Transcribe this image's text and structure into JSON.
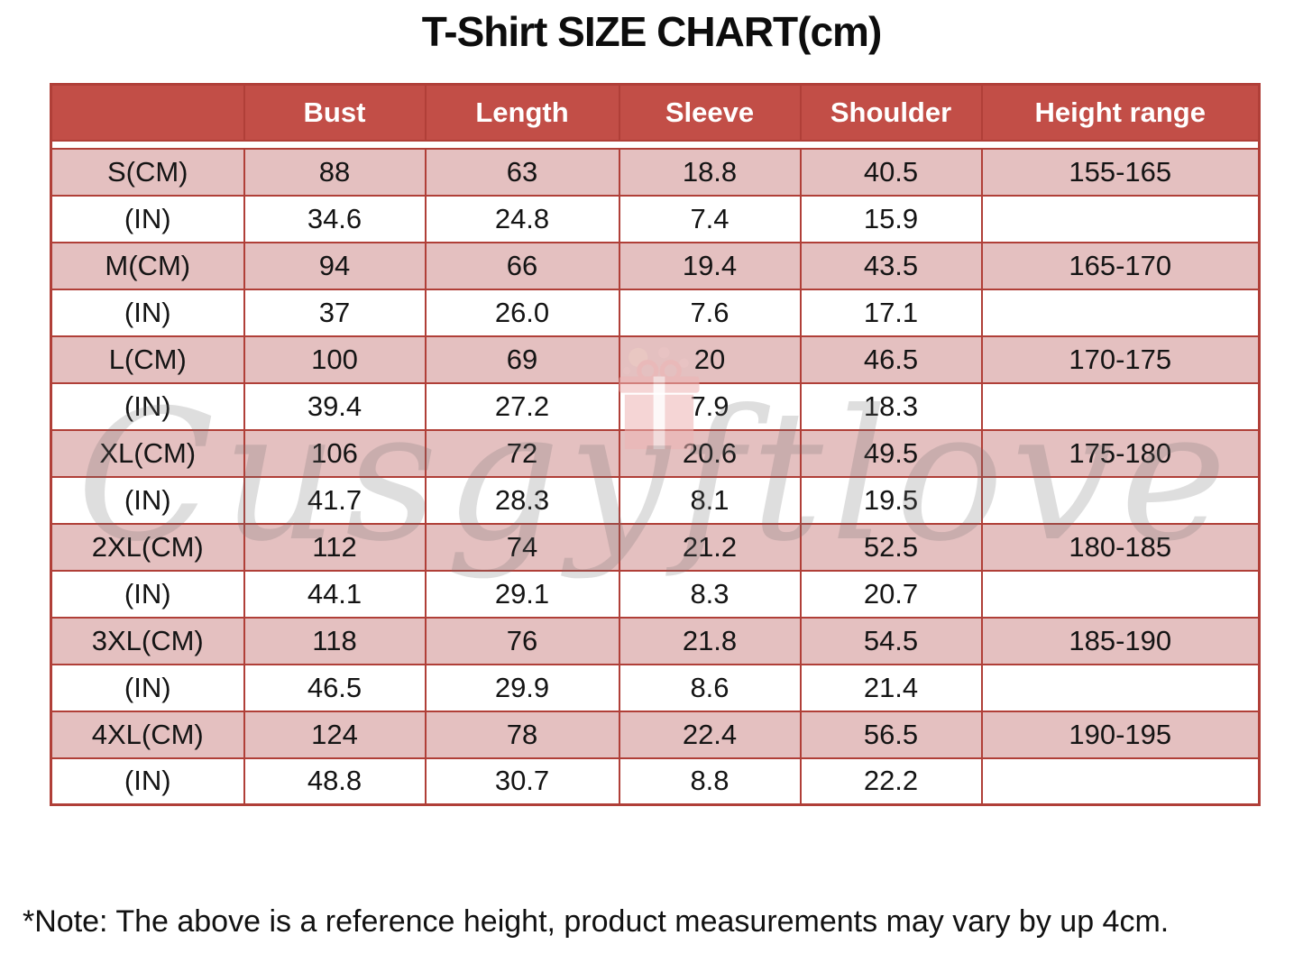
{
  "page": {
    "title": "T-Shirt SIZE CHART(cm)",
    "note": "*Note: The above is a reference height, product measurements may vary by up 4cm.",
    "watermark": "Cusgyftlove"
  },
  "colors": {
    "header_bg": "#c24e47",
    "header_text": "#ffffff",
    "row_shaded_bg": "#e4c0c0",
    "row_plain_bg": "#ffffff",
    "grid_line": "#b03f38",
    "text": "#141414",
    "watermark": "#6f6f6f"
  },
  "chart_data": {
    "type": "table",
    "title": "T-Shirt SIZE CHART(cm)",
    "columns": [
      "",
      "Bust",
      "Length",
      "Sleeve",
      "Shoulder",
      "Height range"
    ],
    "rows": [
      {
        "shaded": true,
        "cells": [
          "S(CM)",
          "88",
          "63",
          "18.8",
          "40.5",
          "155-165"
        ]
      },
      {
        "shaded": false,
        "cells": [
          "(IN)",
          "34.6",
          "24.8",
          "7.4",
          "15.9",
          ""
        ]
      },
      {
        "shaded": true,
        "cells": [
          "M(CM)",
          "94",
          "66",
          "19.4",
          "43.5",
          "165-170"
        ]
      },
      {
        "shaded": false,
        "cells": [
          "(IN)",
          "37",
          "26.0",
          "7.6",
          "17.1",
          ""
        ]
      },
      {
        "shaded": true,
        "cells": [
          "L(CM)",
          "100",
          "69",
          "20",
          "46.5",
          "170-175"
        ]
      },
      {
        "shaded": false,
        "cells": [
          "(IN)",
          "39.4",
          "27.2",
          "7.9",
          "18.3",
          ""
        ]
      },
      {
        "shaded": true,
        "cells": [
          "XL(CM)",
          "106",
          "72",
          "20.6",
          "49.5",
          "175-180"
        ]
      },
      {
        "shaded": false,
        "cells": [
          "(IN)",
          "41.7",
          "28.3",
          "8.1",
          "19.5",
          ""
        ]
      },
      {
        "shaded": true,
        "cells": [
          "2XL(CM)",
          "112",
          "74",
          "21.2",
          "52.5",
          "180-185"
        ]
      },
      {
        "shaded": false,
        "cells": [
          "(IN)",
          "44.1",
          "29.1",
          "8.3",
          "20.7",
          ""
        ]
      },
      {
        "shaded": true,
        "cells": [
          "3XL(CM)",
          "118",
          "76",
          "21.8",
          "54.5",
          "185-190"
        ]
      },
      {
        "shaded": false,
        "cells": [
          "(IN)",
          "46.5",
          "29.9",
          "8.6",
          "21.4",
          ""
        ]
      },
      {
        "shaded": true,
        "cells": [
          "4XL(CM)",
          "124",
          "78",
          "22.4",
          "56.5",
          "190-195"
        ]
      },
      {
        "shaded": false,
        "cells": [
          "(IN)",
          "48.8",
          "30.7",
          "8.8",
          "22.2",
          ""
        ]
      }
    ]
  }
}
